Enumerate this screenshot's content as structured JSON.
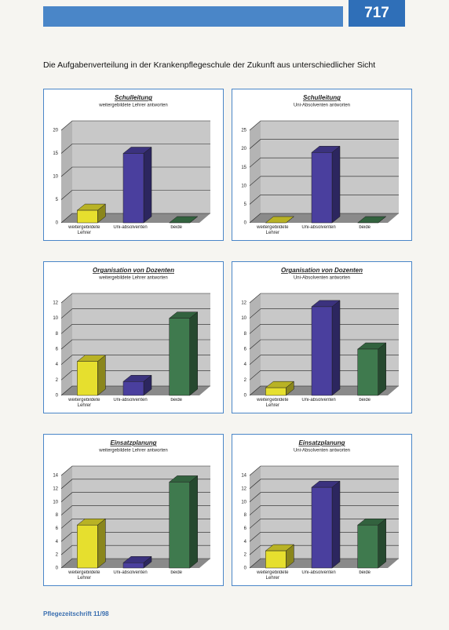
{
  "header": {
    "page_number": "717"
  },
  "title": "Die Aufgabenverteilung in der Krankenpflegeschule der Zukunft aus unterschiedlicher Sicht",
  "footer": {
    "journal": "Pflegezeitschrift 11/98"
  },
  "chart_data": [
    {
      "type": "bar",
      "title": "Schulleitung",
      "subtitle": "weitergebildete Lehrer antworten",
      "categories": [
        "weitergebildete Lehrer",
        "Uni-absolventen",
        "beide"
      ],
      "values": [
        2.7,
        15,
        0
      ],
      "colors": [
        "#e6df2e",
        "#4a3f9e",
        "#3f7a4e"
      ],
      "ylim": [
        0,
        20
      ],
      "yticks": [
        0,
        5,
        10,
        15,
        20
      ]
    },
    {
      "type": "bar",
      "title": "Schulleitung",
      "subtitle": "Uni-Absolventen antworten",
      "categories": [
        "weitergebildete Lehrer",
        "Uni-absolventen",
        "beide"
      ],
      "values": [
        0,
        19,
        0
      ],
      "colors": [
        "#e6df2e",
        "#4a3f9e",
        "#3f7a4e"
      ],
      "ylim": [
        0,
        25
      ],
      "yticks": [
        0,
        5,
        10,
        15,
        20,
        25
      ]
    },
    {
      "type": "bar",
      "title": "Organisation von Dozenten",
      "subtitle": "weitergebildete Lehrer antworten",
      "categories": [
        "weitergebildete Lehrer",
        "Uni-absolventen",
        "beide"
      ],
      "values": [
        4.4,
        1.8,
        10
      ],
      "colors": [
        "#e6df2e",
        "#4a3f9e",
        "#3f7a4e"
      ],
      "ylim": [
        0,
        12
      ],
      "yticks": [
        0,
        2,
        4,
        6,
        8,
        10,
        12
      ]
    },
    {
      "type": "bar",
      "title": "Organisation von Dozenten",
      "subtitle": "Uni-Absolventen antworten",
      "categories": [
        "weitergebildete Lehrer",
        "Uni-absolventen",
        "beide"
      ],
      "values": [
        1,
        11.5,
        6
      ],
      "colors": [
        "#e6df2e",
        "#4a3f9e",
        "#3f7a4e"
      ],
      "ylim": [
        0,
        12
      ],
      "yticks": [
        0,
        2,
        4,
        6,
        8,
        10,
        12
      ]
    },
    {
      "type": "bar",
      "title": "Einsatzplanung",
      "subtitle": "weitergebildete Lehrer antworten",
      "categories": [
        "weitergebildete Lehrer",
        "Uni-absolventen",
        "beide"
      ],
      "values": [
        6.5,
        0.8,
        13
      ],
      "colors": [
        "#e6df2e",
        "#4a3f9e",
        "#3f7a4e"
      ],
      "ylim": [
        0,
        14
      ],
      "yticks": [
        0,
        2,
        4,
        6,
        8,
        10,
        12,
        14
      ]
    },
    {
      "type": "bar",
      "title": "Einsatzplanung",
      "subtitle": "Uni-Absolventen antworten",
      "categories": [
        "weitergebildete Lehrer",
        "Uni-absolventen",
        "beide"
      ],
      "values": [
        2.6,
        12.2,
        6.5
      ],
      "colors": [
        "#e6df2e",
        "#4a3f9e",
        "#3f7a4e"
      ],
      "ylim": [
        0,
        14
      ],
      "yticks": [
        0,
        2,
        4,
        6,
        8,
        10,
        12,
        14
      ]
    }
  ]
}
